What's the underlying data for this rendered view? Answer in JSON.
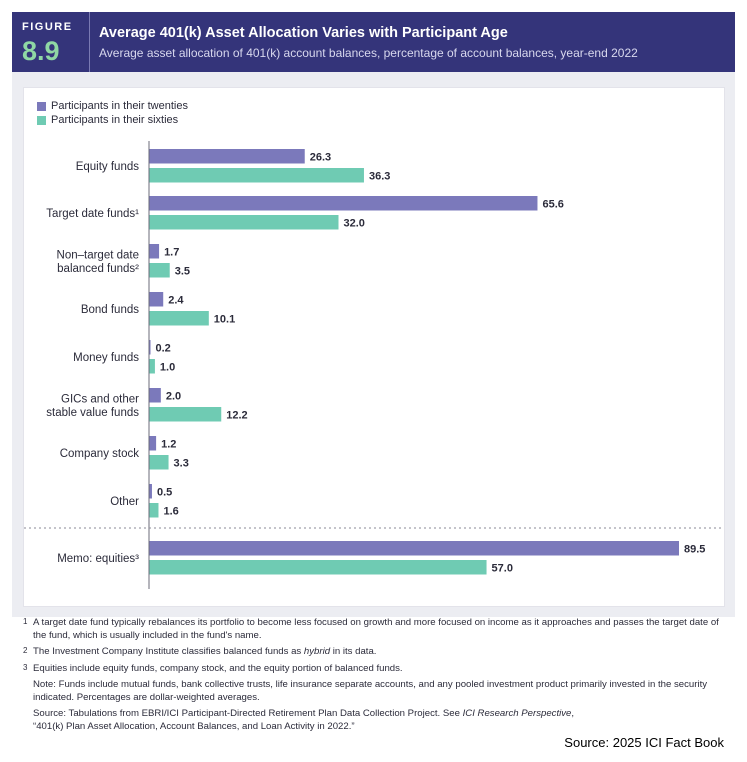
{
  "header": {
    "figure_label": "FIGURE",
    "figure_number": "8.9",
    "title": "Average 401(k) Asset Allocation Varies with Participant Age",
    "subtitle": "Average asset allocation of 401(k) account balances, percentage of account balances, year-end 2022"
  },
  "colors": {
    "header_bg": "#34347a",
    "series_twenties": "#7b79bb",
    "series_sixties": "#6fcbb3"
  },
  "chart_data": {
    "type": "bar",
    "orientation": "horizontal",
    "title": "Average 401(k) Asset Allocation Varies with Participant Age",
    "xlabel": "",
    "ylabel": "",
    "xlim": [
      0,
      92
    ],
    "grid": false,
    "legend_position": "top-left",
    "categories": [
      "Equity funds",
      "Target date funds¹",
      "Non–target date balanced funds²",
      "Bond funds",
      "Money funds",
      "GICs and other stable value funds",
      "Company stock",
      "Other",
      "Memo: equities³"
    ],
    "category_lines": [
      [
        "Equity funds"
      ],
      [
        "Target date funds¹"
      ],
      [
        "Non–target date",
        "balanced funds²"
      ],
      [
        "Bond funds"
      ],
      [
        "Money funds"
      ],
      [
        "GICs and other",
        "stable value funds"
      ],
      [
        "Company stock"
      ],
      [
        "Other"
      ],
      [
        "Memo: equities³"
      ]
    ],
    "series": [
      {
        "name": "Participants in their twenties",
        "values": [
          26.3,
          65.6,
          1.7,
          2.4,
          0.2,
          2.0,
          1.2,
          0.5,
          89.5
        ],
        "labels": [
          "26.3",
          "65.6",
          "1.7",
          "2.4",
          "0.2",
          "2.0",
          "1.2",
          "0.5",
          "89.5"
        ]
      },
      {
        "name": "Participants in their sixties",
        "values": [
          36.3,
          32.0,
          3.5,
          10.1,
          1.0,
          12.2,
          3.3,
          1.6,
          57.0
        ],
        "labels": [
          "36.3",
          "32.0",
          "3.5",
          "10.1",
          "1.0",
          "12.2",
          "3.3",
          "1.6",
          "57.0"
        ]
      }
    ],
    "separator_before_category": "Memo: equities³"
  },
  "notes": {
    "note1_mark": "1",
    "note1": "A target date fund typically rebalances its portfolio to become less focused on growth and more focused on income as it approaches and passes the target date of the fund, which is usually included in the fund's name.",
    "note2_mark": "2",
    "note2_a": "The Investment Company Institute classifies balanced funds as ",
    "note2_em": "hybrid",
    "note2_b": " in its data.",
    "note3_mark": "3",
    "note3": "Equities include equity funds, company stock, and the equity portion of balanced funds.",
    "note_general": "Note: Funds include mutual funds, bank collective trusts, life insurance separate accounts, and any pooled investment product primarily invested in the security indicated. Percentages are dollar-weighted averages.",
    "source_a": "Source: Tabulations from EBRI/ICI Participant-Directed Retirement Plan Data Collection Project. See ",
    "source_em": "ICI Research Perspective",
    "source_b": ",",
    "source_c": "“401(k) Plan Asset Allocation, Account Balances, and Loan Activity in 2022.”"
  },
  "fact_source": "Source: 2025 ICI Fact Book"
}
